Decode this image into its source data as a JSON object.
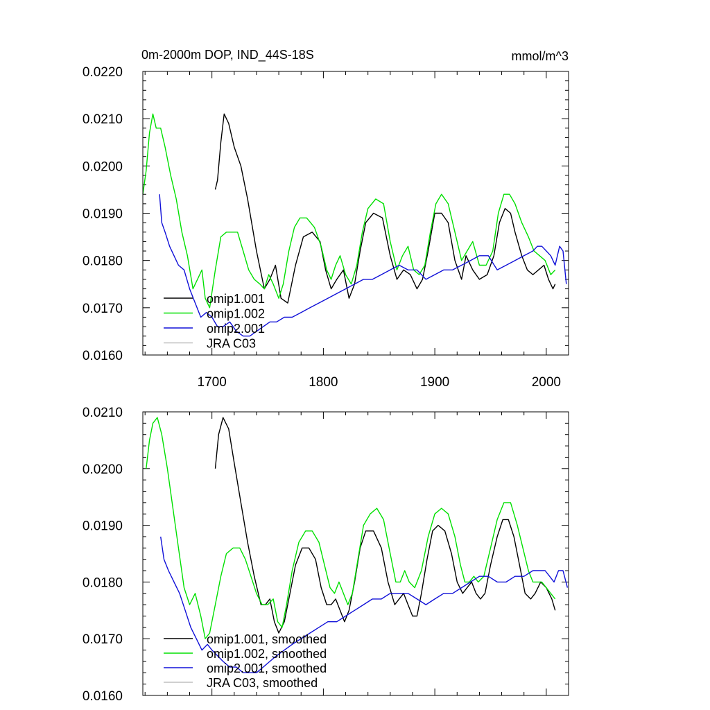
{
  "colors": {
    "omip1_001": "#000000",
    "omip1_002": "#00e000",
    "omip2_001": "#1010d8",
    "jra_c03": "#bfbfbf"
  },
  "chart_data": [
    {
      "type": "line",
      "title": "0m-2000m DOP, IND_44S-18S",
      "units": "mmol/m^3",
      "xlabel": "",
      "ylabel": "",
      "xlim": [
        1638,
        2020
      ],
      "ylim": [
        0.016,
        0.022
      ],
      "xticks": [
        1700,
        1800,
        1900,
        2000
      ],
      "xtick_labels": [
        "1700",
        "1800",
        "1900",
        "2000"
      ],
      "yticks": [
        0.016,
        0.017,
        0.018,
        0.019,
        0.02,
        0.021,
        0.022
      ],
      "ytick_labels": [
        "0.0160",
        "0.0170",
        "0.0180",
        "0.0190",
        "0.0200",
        "0.0210",
        "0.0220"
      ],
      "legend_position": "bottom-left",
      "series": [
        {
          "name": "omip1.001",
          "color_key": "omip1_001",
          "x": [
            1703,
            1705,
            1708,
            1711,
            1715,
            1720,
            1726,
            1732,
            1740,
            1747,
            1752,
            1757,
            1762,
            1768,
            1775,
            1782,
            1790,
            1797,
            1802,
            1807,
            1812,
            1818,
            1823,
            1828,
            1833,
            1838,
            1845,
            1853,
            1860,
            1866,
            1872,
            1878,
            1884,
            1889,
            1894,
            1900,
            1906,
            1912,
            1918,
            1924,
            1928,
            1934,
            1940,
            1947,
            1953,
            1958,
            1963,
            1968,
            1972,
            1978,
            1983,
            1988,
            1993,
            1998,
            2002,
            2006,
            2008
          ],
          "values": [
            0.0195,
            0.0197,
            0.0205,
            0.0211,
            0.0209,
            0.0204,
            0.02,
            0.0193,
            0.0182,
            0.0174,
            0.0176,
            0.0179,
            0.0172,
            0.0171,
            0.0179,
            0.0185,
            0.0186,
            0.0184,
            0.0178,
            0.0174,
            0.0176,
            0.0178,
            0.0172,
            0.0175,
            0.0182,
            0.0188,
            0.019,
            0.0189,
            0.0181,
            0.0176,
            0.0178,
            0.0177,
            0.0174,
            0.0176,
            0.0182,
            0.019,
            0.019,
            0.0188,
            0.018,
            0.0176,
            0.0181,
            0.0178,
            0.0176,
            0.0177,
            0.0181,
            0.0188,
            0.0191,
            0.019,
            0.0186,
            0.0181,
            0.0178,
            0.0177,
            0.0178,
            0.0179,
            0.0176,
            0.0174,
            0.0175
          ]
        },
        {
          "name": "omip1.002",
          "color_key": "omip1_002",
          "x": [
            1638,
            1641,
            1644,
            1647,
            1650,
            1654,
            1658,
            1663,
            1668,
            1673,
            1678,
            1683,
            1687,
            1691,
            1694,
            1698,
            1703,
            1708,
            1713,
            1718,
            1723,
            1728,
            1733,
            1738,
            1743,
            1747,
            1751,
            1755,
            1760,
            1764,
            1769,
            1774,
            1779,
            1785,
            1792,
            1798,
            1803,
            1807,
            1811,
            1815,
            1820,
            1825,
            1830,
            1835,
            1840,
            1847,
            1854,
            1860,
            1866,
            1871,
            1876,
            1881,
            1886,
            1891,
            1896,
            1901,
            1906,
            1912,
            1918,
            1924,
            1929,
            1934,
            1940,
            1946,
            1952,
            1957,
            1962,
            1967,
            1972,
            1978,
            1984,
            1989,
            1994,
            1999,
            2004,
            2008
          ],
          "values": [
            0.0194,
            0.0199,
            0.0207,
            0.0211,
            0.0208,
            0.0208,
            0.0204,
            0.0198,
            0.0193,
            0.0186,
            0.0181,
            0.0174,
            0.0176,
            0.0178,
            0.0172,
            0.017,
            0.0178,
            0.0185,
            0.0186,
            0.0186,
            0.0186,
            0.0182,
            0.0178,
            0.0176,
            0.0175,
            0.0174,
            0.0177,
            0.0175,
            0.0172,
            0.0175,
            0.0182,
            0.0187,
            0.0189,
            0.0189,
            0.0187,
            0.0183,
            0.0178,
            0.0176,
            0.0179,
            0.0181,
            0.0177,
            0.0175,
            0.0179,
            0.0186,
            0.0191,
            0.0193,
            0.0192,
            0.0184,
            0.0178,
            0.0181,
            0.0183,
            0.0178,
            0.0177,
            0.0179,
            0.0186,
            0.0192,
            0.0194,
            0.0192,
            0.0186,
            0.018,
            0.0182,
            0.0184,
            0.0179,
            0.0179,
            0.0182,
            0.019,
            0.0194,
            0.0194,
            0.0192,
            0.0188,
            0.0185,
            0.0182,
            0.0181,
            0.018,
            0.0177,
            0.0178
          ]
        },
        {
          "name": "omip2.001",
          "color_key": "omip2_001",
          "x": [
            1653,
            1655,
            1658,
            1662,
            1666,
            1670,
            1675,
            1680,
            1685,
            1690,
            1695,
            1700,
            1705,
            1710,
            1716,
            1722,
            1728,
            1734,
            1740,
            1746,
            1752,
            1758,
            1765,
            1772,
            1780,
            1788,
            1796,
            1804,
            1812,
            1820,
            1828,
            1836,
            1844,
            1852,
            1860,
            1868,
            1876,
            1884,
            1892,
            1900,
            1908,
            1916,
            1924,
            1932,
            1940,
            1948,
            1956,
            1964,
            1972,
            1980,
            1988,
            1992,
            1996,
            2000,
            2004,
            2008,
            2012,
            2015,
            2018
          ],
          "values": [
            0.0194,
            0.0188,
            0.0186,
            0.0183,
            0.0181,
            0.0179,
            0.0178,
            0.0174,
            0.0171,
            0.0168,
            0.0169,
            0.0168,
            0.0166,
            0.0166,
            0.0167,
            0.0165,
            0.0164,
            0.0164,
            0.0165,
            0.0166,
            0.0167,
            0.0167,
            0.0168,
            0.0168,
            0.0169,
            0.017,
            0.0171,
            0.0172,
            0.0173,
            0.0174,
            0.0175,
            0.0176,
            0.0176,
            0.0177,
            0.0178,
            0.0179,
            0.0178,
            0.0178,
            0.0176,
            0.0177,
            0.0178,
            0.0178,
            0.0179,
            0.018,
            0.0181,
            0.0181,
            0.0178,
            0.0179,
            0.018,
            0.0181,
            0.0182,
            0.0183,
            0.0183,
            0.0182,
            0.0181,
            0.0179,
            0.0183,
            0.0182,
            0.0175
          ]
        },
        {
          "name": "JRA C03",
          "color_key": "jra_c03",
          "x": [],
          "values": []
        }
      ]
    },
    {
      "type": "line",
      "title": "",
      "xlabel": "",
      "ylabel": "",
      "xlim": [
        1638,
        2020
      ],
      "ylim": [
        0.016,
        0.021
      ],
      "xticks": [
        1700,
        1800,
        1900,
        2000
      ],
      "xtick_labels": [],
      "yticks": [
        0.016,
        0.017,
        0.018,
        0.019,
        0.02,
        0.021
      ],
      "ytick_labels": [
        "0.0160",
        "0.0170",
        "0.0180",
        "0.0190",
        "0.0200",
        "0.0210"
      ],
      "legend_position": "bottom-left",
      "series": [
        {
          "name": "omip1.001, smoothed",
          "color_key": "omip1_001",
          "x": [
            1703,
            1706,
            1710,
            1715,
            1720,
            1726,
            1732,
            1738,
            1744,
            1748,
            1752,
            1756,
            1760,
            1765,
            1770,
            1775,
            1781,
            1787,
            1793,
            1798,
            1803,
            1807,
            1811,
            1815,
            1819,
            1823,
            1828,
            1833,
            1838,
            1845,
            1852,
            1858,
            1864,
            1868,
            1872,
            1876,
            1880,
            1884,
            1888,
            1893,
            1898,
            1903,
            1909,
            1915,
            1920,
            1925,
            1929,
            1933,
            1937,
            1941,
            1945,
            1950,
            1956,
            1961,
            1966,
            1971,
            1976,
            1981,
            1986,
            1990,
            1995,
            2000,
            2005,
            2008
          ],
          "values": [
            0.02,
            0.0206,
            0.0209,
            0.0207,
            0.0201,
            0.0194,
            0.0187,
            0.0181,
            0.0176,
            0.0176,
            0.0177,
            0.0173,
            0.0171,
            0.0173,
            0.0178,
            0.0183,
            0.0186,
            0.0186,
            0.0184,
            0.0179,
            0.0176,
            0.0176,
            0.0177,
            0.0175,
            0.0173,
            0.0175,
            0.018,
            0.0186,
            0.0189,
            0.0189,
            0.0186,
            0.018,
            0.0176,
            0.0177,
            0.0178,
            0.0176,
            0.0174,
            0.0174,
            0.0178,
            0.0184,
            0.0189,
            0.019,
            0.0189,
            0.0185,
            0.018,
            0.0178,
            0.0179,
            0.018,
            0.0178,
            0.0177,
            0.0178,
            0.0183,
            0.0188,
            0.0191,
            0.0191,
            0.0188,
            0.0183,
            0.0178,
            0.0177,
            0.0178,
            0.018,
            0.0179,
            0.0177,
            0.0175
          ]
        },
        {
          "name": "omip1.002, smoothed",
          "color_key": "omip1_002",
          "x": [
            1641,
            1644,
            1647,
            1651,
            1655,
            1660,
            1665,
            1670,
            1675,
            1680,
            1685,
            1690,
            1694,
            1698,
            1703,
            1708,
            1713,
            1719,
            1725,
            1730,
            1735,
            1740,
            1745,
            1750,
            1755,
            1759,
            1763,
            1767,
            1772,
            1778,
            1784,
            1790,
            1796,
            1801,
            1806,
            1810,
            1814,
            1818,
            1822,
            1826,
            1831,
            1836,
            1842,
            1848,
            1854,
            1860,
            1865,
            1869,
            1873,
            1877,
            1882,
            1888,
            1894,
            1900,
            1906,
            1912,
            1918,
            1923,
            1927,
            1931,
            1935,
            1939,
            1944,
            1950,
            1956,
            1962,
            1968,
            1974,
            1979,
            1984,
            1988,
            1992,
            1996,
            2000,
            2004,
            2008
          ],
          "values": [
            0.02,
            0.0205,
            0.0208,
            0.0209,
            0.0206,
            0.02,
            0.0193,
            0.0186,
            0.0179,
            0.0176,
            0.0178,
            0.0174,
            0.017,
            0.0171,
            0.0176,
            0.0181,
            0.0185,
            0.0186,
            0.0186,
            0.0184,
            0.0181,
            0.0178,
            0.0176,
            0.0176,
            0.0177,
            0.0173,
            0.0172,
            0.0176,
            0.0182,
            0.0187,
            0.0189,
            0.0189,
            0.0187,
            0.0183,
            0.0179,
            0.0178,
            0.018,
            0.0178,
            0.0176,
            0.0178,
            0.0184,
            0.019,
            0.0192,
            0.0193,
            0.0191,
            0.0185,
            0.018,
            0.018,
            0.0182,
            0.018,
            0.0179,
            0.0182,
            0.0188,
            0.0192,
            0.0193,
            0.0192,
            0.0188,
            0.0183,
            0.018,
            0.018,
            0.0181,
            0.018,
            0.0181,
            0.0186,
            0.0191,
            0.0194,
            0.0194,
            0.019,
            0.0186,
            0.0182,
            0.018,
            0.018,
            0.018,
            0.0179,
            0.0178,
            0.0177
          ]
        },
        {
          "name": "omip2.001, smoothed",
          "color_key": "omip2_001",
          "x": [
            1654,
            1657,
            1661,
            1666,
            1671,
            1676,
            1681,
            1686,
            1691,
            1696,
            1700,
            1705,
            1710,
            1716,
            1722,
            1728,
            1734,
            1740,
            1746,
            1752,
            1758,
            1765,
            1772,
            1780,
            1788,
            1796,
            1804,
            1812,
            1820,
            1828,
            1836,
            1844,
            1852,
            1860,
            1868,
            1876,
            1884,
            1892,
            1900,
            1908,
            1916,
            1924,
            1932,
            1940,
            1948,
            1956,
            1964,
            1972,
            1980,
            1988,
            1994,
            1999,
            2003,
            2007,
            2011,
            2015,
            2019
          ],
          "values": [
            0.0188,
            0.0184,
            0.0182,
            0.018,
            0.0178,
            0.0175,
            0.0172,
            0.017,
            0.0168,
            0.0169,
            0.0168,
            0.0167,
            0.0166,
            0.0165,
            0.0165,
            0.0164,
            0.0164,
            0.0164,
            0.0165,
            0.0166,
            0.0167,
            0.0168,
            0.0169,
            0.017,
            0.0171,
            0.0172,
            0.0173,
            0.0173,
            0.0174,
            0.0175,
            0.0176,
            0.0177,
            0.0177,
            0.0178,
            0.0178,
            0.0178,
            0.0177,
            0.0176,
            0.0177,
            0.0178,
            0.0178,
            0.0179,
            0.018,
            0.0181,
            0.0181,
            0.018,
            0.018,
            0.0181,
            0.0181,
            0.0182,
            0.0182,
            0.0182,
            0.0181,
            0.018,
            0.0182,
            0.0182,
            0.0179
          ]
        },
        {
          "name": "JRA C03, smoothed",
          "color_key": "jra_c03",
          "x": [],
          "values": []
        }
      ]
    }
  ]
}
